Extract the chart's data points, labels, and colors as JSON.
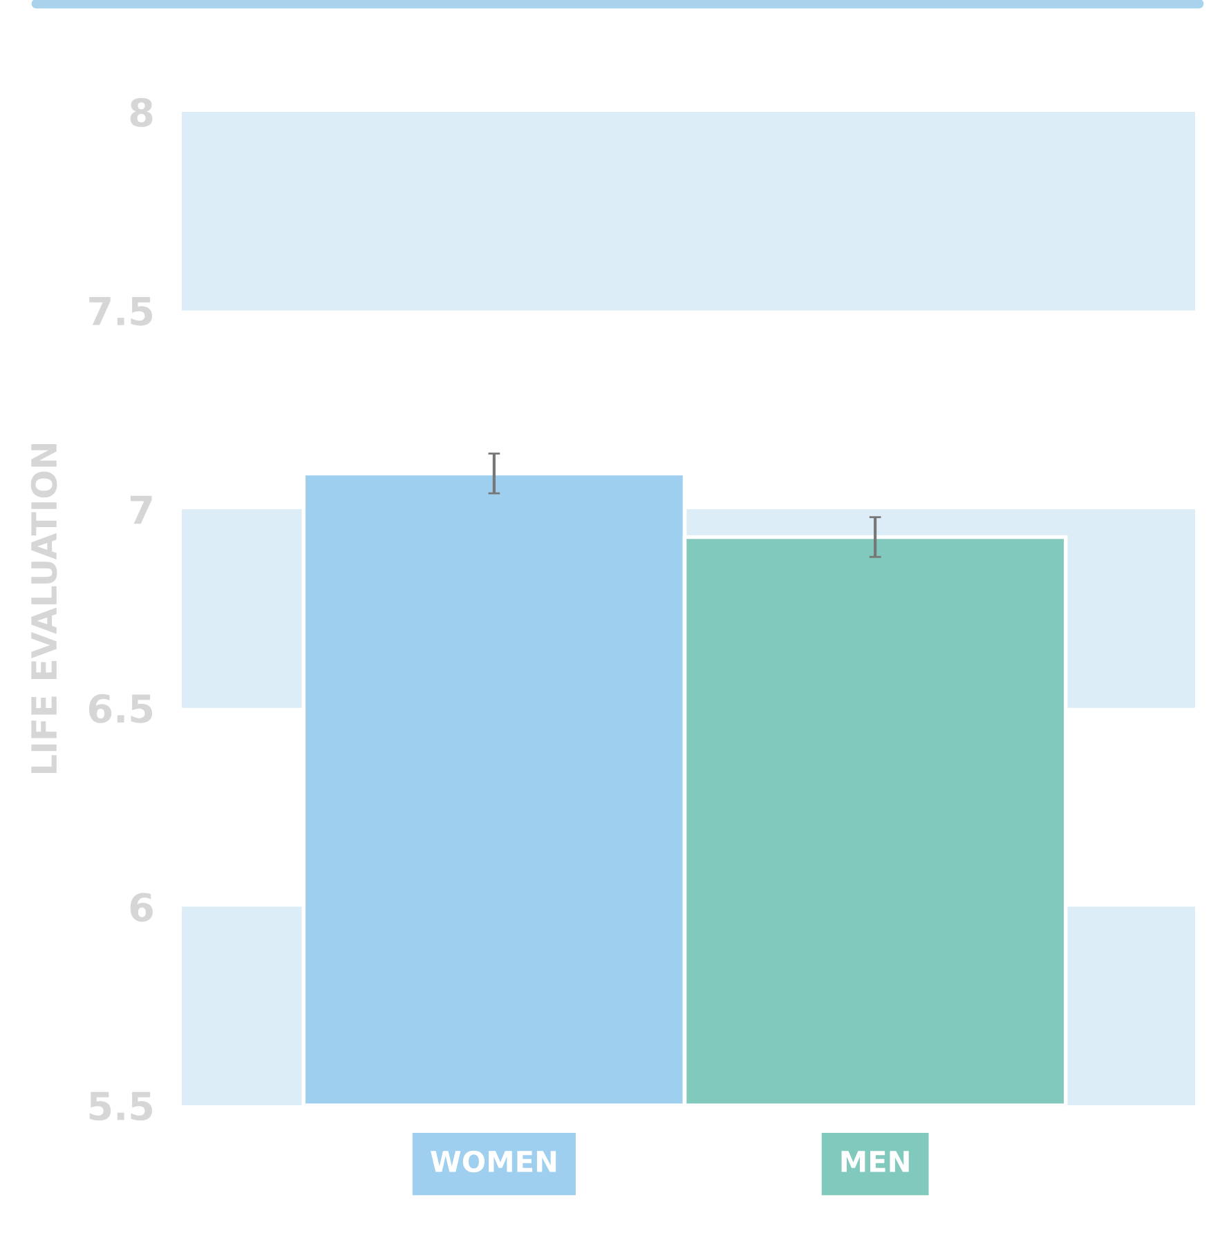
{
  "chart_data": {
    "type": "bar",
    "ylabel": "LIFE EVALUATION",
    "categories": [
      "WOMEN",
      "MEN"
    ],
    "values": [
      7.09,
      6.93
    ],
    "colors": [
      "#9fcfee",
      "#81c9bd"
    ],
    "errors": [
      0.05,
      0.05
    ],
    "ylim": [
      5.5,
      8
    ],
    "yticks": [
      5.5,
      6,
      6.5,
      7,
      7.5,
      8
    ],
    "grid": false,
    "bands": [
      {
        "axis": "y",
        "from": 7.5,
        "to": 8,
        "color": "#dcedf7"
      },
      {
        "axis": "y",
        "from": 6.5,
        "to": 7,
        "color": "#dcedf7"
      },
      {
        "axis": "y",
        "from": 5.5,
        "to": 6,
        "color": "#dcedf7"
      }
    ]
  }
}
